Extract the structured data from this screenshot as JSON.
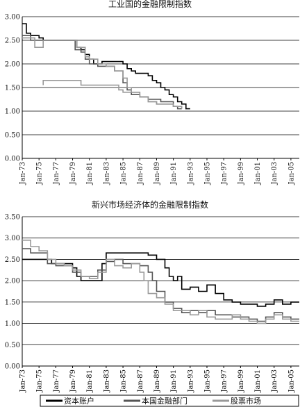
{
  "chart_data": [
    {
      "type": "line",
      "title": "工业国的金融限制指数",
      "xlabel": "",
      "ylabel": "",
      "ylim": [
        0,
        3
      ],
      "y_ticks": [
        "0.00",
        "0.50",
        "1.00",
        "1.50",
        "2.00",
        "2.50",
        "3.00"
      ],
      "x_range": [
        1973,
        2006
      ],
      "x_ticks": [
        "Jan-73",
        "Jan-75",
        "Jan-77",
        "Jan-79",
        "Jan-81",
        "Jan-83",
        "Jan-85",
        "Jan-87",
        "Jan-89",
        "Jan-91",
        "Jan-93",
        "Jan-95",
        "Jan-97",
        "Jan-99",
        "Jan-01",
        "Jan-03",
        "Jan-05"
      ],
      "grid": true,
      "series": [
        {
          "name": "资本账户",
          "color": "#000000",
          "points": [
            [
              1973,
              2.85
            ],
            [
              1973.5,
              2.65
            ],
            [
              1974,
              2.6
            ],
            [
              1975,
              2.55
            ],
            [
              1975.5,
              2.5
            ],
            [
              1976,
              2.5
            ],
            [
              1979,
              2.5
            ],
            [
              1979.5,
              2.35
            ],
            [
              1980,
              2.3
            ],
            [
              1980.5,
              2.2
            ],
            [
              1981,
              2.1
            ],
            [
              1981.5,
              2.0
            ],
            [
              1982,
              2.0
            ],
            [
              1982.5,
              2.05
            ],
            [
              1984,
              2.05
            ],
            [
              1985,
              2.0
            ],
            [
              1985.5,
              1.9
            ],
            [
              1986,
              1.85
            ],
            [
              1986.5,
              1.8
            ],
            [
              1987,
              1.8
            ],
            [
              1988,
              1.75
            ],
            [
              1988.5,
              1.65
            ],
            [
              1989,
              1.6
            ],
            [
              1989.5,
              1.5
            ],
            [
              1990,
              1.45
            ],
            [
              1990.5,
              1.35
            ],
            [
              1991,
              1.3
            ],
            [
              1991.5,
              1.2
            ],
            [
              1992,
              1.15
            ],
            [
              1992.5,
              1.05
            ],
            [
              1993,
              1.05
            ]
          ]
        },
        {
          "name": "本国金融部门",
          "color": "#555555",
          "points": [
            [
              1973,
              2.6
            ],
            [
              1974,
              2.5
            ],
            [
              1975,
              2.5
            ],
            [
              1979,
              2.5
            ],
            [
              1979.3,
              2.3
            ],
            [
              1980,
              2.25
            ],
            [
              1980.5,
              2.1
            ],
            [
              1981,
              2.0
            ],
            [
              1982,
              1.95
            ],
            [
              1983,
              1.95
            ],
            [
              1984,
              1.85
            ],
            [
              1985,
              1.6
            ],
            [
              1985.5,
              1.45
            ],
            [
              1986,
              1.35
            ],
            [
              1987,
              1.3
            ],
            [
              1988,
              1.25
            ],
            [
              1989,
              1.25
            ],
            [
              1989.5,
              1.2
            ],
            [
              1990,
              1.2
            ],
            [
              1991,
              1.1
            ],
            [
              1991.5,
              1.05
            ],
            [
              1992,
              1.05
            ]
          ]
        },
        {
          "name": "股票市场",
          "color": "#999999",
          "points": [
            [
              1973,
              2.55
            ],
            [
              1974,
              2.55
            ],
            [
              1974.5,
              2.35
            ],
            [
              1975,
              2.35
            ],
            [
              1975.5,
              2.5
            ],
            [
              1979,
              2.5
            ],
            [
              1979.5,
              2.35
            ],
            [
              1980,
              2.35
            ],
            [
              1980.5,
              2.15
            ],
            [
              1981,
              2.1
            ],
            [
              1982,
              2.0
            ],
            [
              1983,
              1.95
            ],
            [
              1984,
              1.85
            ],
            [
              1985,
              1.7
            ],
            [
              1985.5,
              1.5
            ],
            [
              1986,
              1.4
            ],
            [
              1987,
              1.3
            ],
            [
              1988,
              1.2
            ],
            [
              1989,
              1.15
            ],
            [
              1990,
              1.15
            ],
            [
              1991,
              1.1
            ],
            [
              1992,
              1.05
            ]
          ]
        },
        {
          "name": "",
          "color": "#999999",
          "points": [
            [
              1975.5,
              1.55
            ],
            [
              1975.5,
              1.65
            ],
            [
              1980,
              1.65
            ],
            [
              1980,
              1.55
            ],
            [
              1984,
              1.55
            ],
            [
              1984.5,
              1.45
            ],
            [
              1985,
              1.4
            ],
            [
              1987,
              1.3
            ],
            [
              1988,
              1.2
            ],
            [
              1989,
              1.15
            ],
            [
              1990,
              1.15
            ],
            [
              1991,
              1.1
            ]
          ]
        }
      ]
    },
    {
      "type": "line",
      "title": "新兴市场经济体的金融限制指数",
      "xlabel": "",
      "ylabel": "",
      "ylim": [
        0,
        3.5
      ],
      "y_ticks": [
        "0.00",
        "0.50",
        "1.00",
        "1.50",
        "2.00",
        "2.50",
        "3.00",
        "3.50"
      ],
      "x_range": [
        1973,
        2006
      ],
      "x_ticks": [
        "Jan-73",
        "Jan-75",
        "Jan-77",
        "Jan-79",
        "Jan-81",
        "Jan-83",
        "Jan-85",
        "Jan-87",
        "Jan-89",
        "Jan-91",
        "Jan-93",
        "Jan-95",
        "Jan-97",
        "Jan-99",
        "Jan-01",
        "Jan-03",
        "Jan-05"
      ],
      "grid": true,
      "series": [
        {
          "name": "资本账户",
          "color": "#000000",
          "points": [
            [
              1973,
              2.5
            ],
            [
              1976,
              2.5
            ],
            [
              1976.5,
              2.4
            ],
            [
              1978,
              2.4
            ],
            [
              1979,
              2.3
            ],
            [
              1979.5,
              2.1
            ],
            [
              1980,
              2.0
            ],
            [
              1982,
              2.0
            ],
            [
              1982.5,
              2.4
            ],
            [
              1983,
              2.65
            ],
            [
              1987,
              2.65
            ],
            [
              1988,
              2.6
            ],
            [
              1989,
              2.5
            ],
            [
              1990,
              2.3
            ],
            [
              1990.5,
              2.1
            ],
            [
              1991,
              2.0
            ],
            [
              1991.5,
              2.1
            ],
            [
              1992,
              1.8
            ],
            [
              1993,
              1.85
            ],
            [
              1994,
              1.75
            ],
            [
              1995,
              1.9
            ],
            [
              1996,
              1.7
            ],
            [
              1997,
              1.55
            ],
            [
              1998,
              1.5
            ],
            [
              1999,
              1.45
            ],
            [
              2000,
              1.45
            ],
            [
              2001,
              1.4
            ],
            [
              2002,
              1.45
            ],
            [
              2003,
              1.55
            ],
            [
              2004,
              1.45
            ],
            [
              2005,
              1.5
            ],
            [
              2006,
              1.5
            ]
          ]
        },
        {
          "name": "本国金融部门",
          "color": "#555555",
          "points": [
            [
              1973,
              2.75
            ],
            [
              1974,
              2.65
            ],
            [
              1975,
              2.65
            ],
            [
              1976,
              2.4
            ],
            [
              1977,
              2.35
            ],
            [
              1978,
              2.35
            ],
            [
              1979,
              2.2
            ],
            [
              1980,
              2.1
            ],
            [
              1981,
              2.1
            ],
            [
              1982,
              2.25
            ],
            [
              1983,
              2.45
            ],
            [
              1984,
              2.5
            ],
            [
              1985,
              2.4
            ],
            [
              1986,
              2.4
            ],
            [
              1987,
              2.35
            ],
            [
              1988,
              2.2
            ],
            [
              1988.5,
              2.0
            ],
            [
              1989,
              1.75
            ],
            [
              1990,
              1.5
            ],
            [
              1991,
              1.35
            ],
            [
              1992,
              1.25
            ],
            [
              1993,
              1.3
            ],
            [
              1994,
              1.25
            ],
            [
              1995,
              1.3
            ],
            [
              1996,
              1.2
            ],
            [
              1997,
              1.2
            ],
            [
              1998,
              1.15
            ],
            [
              1999,
              1.15
            ],
            [
              2000,
              1.1
            ],
            [
              2001,
              1.05
            ],
            [
              2002,
              1.15
            ],
            [
              2003,
              1.25
            ],
            [
              2004,
              1.15
            ],
            [
              2005,
              1.1
            ],
            [
              2006,
              1.1
            ]
          ]
        },
        {
          "name": "股票市场",
          "color": "#999999",
          "points": [
            [
              1973,
              2.95
            ],
            [
              1974,
              2.8
            ],
            [
              1975,
              2.7
            ],
            [
              1976,
              2.5
            ],
            [
              1977,
              2.4
            ],
            [
              1978,
              2.35
            ],
            [
              1979,
              2.25
            ],
            [
              1980,
              2.1
            ],
            [
              1981,
              2.05
            ],
            [
              1982,
              2.2
            ],
            [
              1983,
              2.5
            ],
            [
              1984,
              2.35
            ],
            [
              1985,
              2.3
            ],
            [
              1986,
              2.4
            ],
            [
              1987,
              2.2
            ],
            [
              1987.5,
              2.0
            ],
            [
              1988,
              1.7
            ],
            [
              1989,
              1.6
            ],
            [
              1990,
              1.45
            ],
            [
              1991,
              1.3
            ],
            [
              1992,
              1.3
            ],
            [
              1993,
              1.2
            ],
            [
              1994,
              1.3
            ],
            [
              1995,
              1.15
            ],
            [
              1996,
              1.1
            ],
            [
              1997,
              1.1
            ],
            [
              1998,
              1.2
            ],
            [
              1999,
              1.1
            ],
            [
              2000,
              1.05
            ],
            [
              2001,
              1.0
            ],
            [
              2002,
              1.1
            ],
            [
              2003,
              1.2
            ],
            [
              2004,
              1.1
            ],
            [
              2005,
              1.05
            ],
            [
              2006,
              1.05
            ]
          ]
        }
      ]
    }
  ],
  "legend": {
    "items": [
      {
        "label": "资本账户",
        "color": "#000000"
      },
      {
        "label": "本国金融部门",
        "color": "#555555"
      },
      {
        "label": "股票市场",
        "color": "#999999"
      }
    ]
  }
}
